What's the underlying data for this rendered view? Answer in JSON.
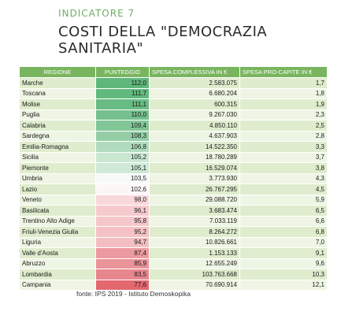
{
  "header": {
    "kicker": "INDICATORE 7",
    "title": "COSTI DELLA \"DEMOCRAZIA SANITARIA\""
  },
  "table": {
    "columns": [
      "REGIONE",
      "PUNTEGGIO",
      "SPESA COMPLESSIVA IN €",
      "SPESA PRO-CAPITE IN €"
    ],
    "rows": [
      {
        "regione": "Marche",
        "punteggio": "112,0",
        "spesa": "2.583.075",
        "procapite": "1,7",
        "color": "#5fb77c"
      },
      {
        "regione": "Toscana",
        "punteggio": "111,7",
        "spesa": "6.680.204",
        "procapite": "1,8",
        "color": "#62b97e"
      },
      {
        "regione": "Molise",
        "punteggio": "111,1",
        "spesa": "600.315",
        "procapite": "1,9",
        "color": "#68bb83"
      },
      {
        "regione": "Puglia",
        "punteggio": "110,0",
        "spesa": "9.267.030",
        "procapite": "2,3",
        "color": "#75c08d"
      },
      {
        "regione": "Calabria",
        "punteggio": "109,4",
        "spesa": "4.850.110",
        "procapite": "2,5",
        "color": "#82c697"
      },
      {
        "regione": "Sardegna",
        "punteggio": "108,3",
        "spesa": "4.637.903",
        "procapite": "2,8",
        "color": "#95cea6"
      },
      {
        "regione": "Emilia-Romagna",
        "punteggio": "106,8",
        "spesa": "14.522.350",
        "procapite": "3,3",
        "color": "#b0dbbc"
      },
      {
        "regione": "Sicilia",
        "punteggio": "105,2",
        "spesa": "18.780.289",
        "procapite": "3,7",
        "color": "#cae7d2"
      },
      {
        "regione": "Piemonte",
        "punteggio": "105,1",
        "spesa": "16.529.074",
        "procapite": "3,8",
        "color": "#cfe9d6"
      },
      {
        "regione": "Umbria",
        "punteggio": "103,5",
        "spesa": "3.773.930",
        "procapite": "4,3",
        "color": "#f6f9f7"
      },
      {
        "regione": "Lazio",
        "punteggio": "102,6",
        "spesa": "26.767.295",
        "procapite": "4,5",
        "color": "#fdf6f7"
      },
      {
        "regione": "Veneto",
        "punteggio": "98,0",
        "spesa": "29.088.720",
        "procapite": "5,9",
        "color": "#f9d7da"
      },
      {
        "regione": "Basilicata",
        "punteggio": "96,1",
        "spesa": "3.683.474",
        "procapite": "6,5",
        "color": "#f6cacd"
      },
      {
        "regione": "Trentino Alto Adige",
        "punteggio": "95,8",
        "spesa": "7.033.119",
        "procapite": "6,6",
        "color": "#f5c7cb"
      },
      {
        "regione": "Friuli-Venezia Giulia",
        "punteggio": "95,2",
        "spesa": "8.264.272",
        "procapite": "6,8",
        "color": "#f4c2c6"
      },
      {
        "regione": "Liguria",
        "punteggio": "94,7",
        "spesa": "10.826.661",
        "procapite": "7,0",
        "color": "#f3bec2"
      },
      {
        "regione": "Valle d'Aosta",
        "punteggio": "87,4",
        "spesa": "1.153.133",
        "procapite": "9,1",
        "color": "#ec9aa0"
      },
      {
        "regione": "Abruzzo",
        "punteggio": "85,9",
        "spesa": "12.655.249",
        "procapite": "9,6",
        "color": "#ea9399"
      },
      {
        "regione": "Lombardia",
        "punteggio": "83,5",
        "spesa": "103.763.668",
        "procapite": "10,3",
        "color": "#e8868d"
      },
      {
        "regione": "Campania",
        "punteggio": "77,6",
        "spesa": "70.690.914",
        "procapite": "12,1",
        "color": "#e2676f"
      }
    ]
  },
  "source": "fonte: IPS 2019 - Istituto Demoskopika"
}
